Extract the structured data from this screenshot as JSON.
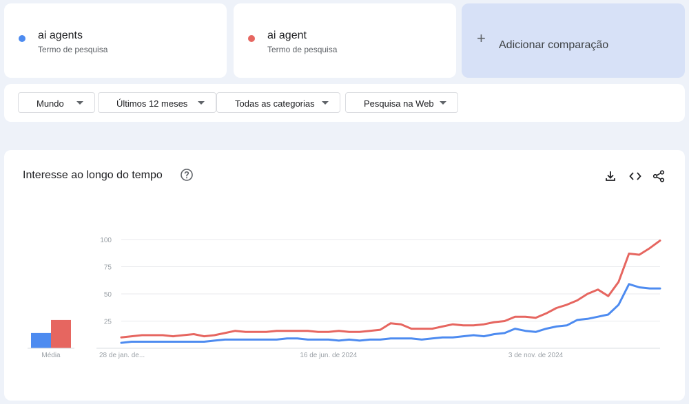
{
  "terms": [
    {
      "name": "ai agents",
      "subtitle": "Termo de pesquisa",
      "color": "#4d8bf0"
    },
    {
      "name": "ai agent",
      "subtitle": "Termo de pesquisa",
      "color": "#e66660"
    }
  ],
  "add_comparison": {
    "icon": "plus-icon",
    "label": "Adicionar comparação"
  },
  "filters": {
    "region": "Mundo",
    "time": "Últimos 12 meses",
    "category": "Todas as categorias",
    "search_type": "Pesquisa na Web"
  },
  "chart_card": {
    "title": "Interesse ao longo do tempo",
    "icons": [
      "help-icon",
      "download-icon",
      "embed-icon",
      "share-icon"
    ]
  },
  "chart_data": [
    {
      "type": "bar",
      "categories": [
        "Média"
      ],
      "series": [
        {
          "name": "ai agents",
          "values": [
            14
          ],
          "color": "#4d8bf0"
        },
        {
          "name": "ai agent",
          "values": [
            26
          ],
          "color": "#e66660"
        }
      ],
      "ylim": [
        0,
        100
      ]
    },
    {
      "type": "line",
      "title": "",
      "xlabel": "",
      "ylabel": "",
      "ylim": [
        0,
        100
      ],
      "yticks": [
        25,
        50,
        75,
        100
      ],
      "x_tick_labels": [
        "28 de jan. de...",
        "16 de jun. de 2024",
        "3 de nov. de 2024"
      ],
      "x_tick_indices": [
        0,
        20,
        40
      ],
      "grid": true,
      "series": [
        {
          "name": "ai agents",
          "color": "#4d8bf0",
          "values": [
            5,
            6,
            6,
            6,
            6,
            6,
            6,
            6,
            6,
            7,
            8,
            8,
            8,
            8,
            8,
            8,
            9,
            9,
            8,
            8,
            8,
            7,
            8,
            7,
            8,
            8,
            9,
            9,
            9,
            8,
            9,
            10,
            10,
            11,
            12,
            11,
            13,
            14,
            18,
            16,
            15,
            18,
            20,
            21,
            26,
            27,
            29,
            31,
            40,
            59,
            56,
            55,
            55
          ]
        },
        {
          "name": "ai agent",
          "color": "#e66660",
          "values": [
            10,
            11,
            12,
            12,
            12,
            11,
            12,
            13,
            11,
            12,
            14,
            16,
            15,
            15,
            15,
            16,
            16,
            16,
            16,
            15,
            15,
            16,
            15,
            15,
            16,
            17,
            23,
            22,
            18,
            18,
            18,
            20,
            22,
            21,
            21,
            22,
            24,
            25,
            29,
            29,
            28,
            32,
            37,
            40,
            44,
            50,
            54,
            48,
            61,
            87,
            86,
            92,
            99
          ]
        }
      ]
    }
  ]
}
